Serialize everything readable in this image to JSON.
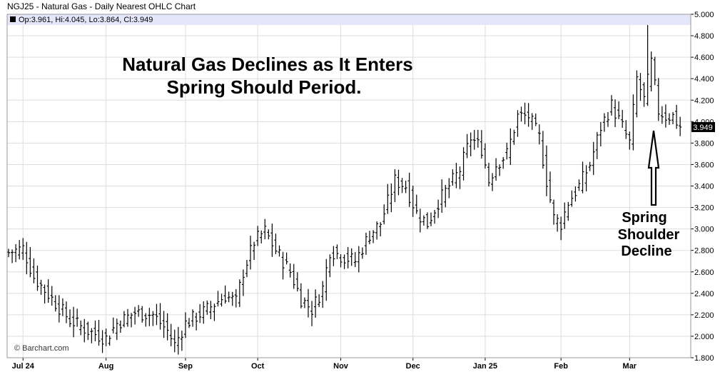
{
  "header": {
    "title": "NGJ25 - Natural Gas - Daily Nearest OHLC Chart",
    "ohlc_readout": "Op:3.961, Hi:4.045, Lo:3.864, Cl:3.949"
  },
  "annotations": {
    "main_title_line1": "Natural Gas Declines as It Enters",
    "main_title_line2": "Spring Should Period.",
    "side_line1": "Spring",
    "side_line2": "Shoulder",
    "side_line3": "Decline"
  },
  "credit": "© Barchart.com",
  "last_price_label": "3.949",
  "colors": {
    "background": "#ffffff",
    "header_band": "#e6e6fa",
    "grid": "#dddddd",
    "bars": "#000000",
    "last_price_box": "#000000"
  },
  "chart_data": {
    "type": "ohlc",
    "title": "NGJ25 - Natural Gas - Daily Nearest OHLC Chart",
    "xlabel": "",
    "ylabel": "",
    "ylim": [
      1.8,
      5.0
    ],
    "yticks": [
      "1.800",
      "2.000",
      "2.200",
      "2.400",
      "2.600",
      "2.800",
      "3.000",
      "3.200",
      "3.400",
      "3.600",
      "3.800",
      "4.000",
      "4.200",
      "4.400",
      "4.600",
      "4.800",
      "5.000"
    ],
    "grid": true,
    "month_labels": [
      {
        "label": "Jul 24",
        "bar_index": 4
      },
      {
        "label": "Aug",
        "bar_index": 27
      },
      {
        "label": "Sep",
        "bar_index": 49
      },
      {
        "label": "Oct",
        "bar_index": 69
      },
      {
        "label": "Nov",
        "bar_index": 92
      },
      {
        "label": "Dec",
        "bar_index": 112
      },
      {
        "label": "Jan 25",
        "bar_index": 132
      },
      {
        "label": "Feb",
        "bar_index": 153
      },
      {
        "label": "Mar",
        "bar_index": 172
      }
    ],
    "close_path": [
      [
        0,
        2.78
      ],
      [
        4,
        2.82
      ],
      [
        7,
        2.55
      ],
      [
        12,
        2.35
      ],
      [
        17,
        2.15
      ],
      [
        22,
        2.05
      ],
      [
        27,
        1.98
      ],
      [
        30,
        2.12
      ],
      [
        35,
        2.22
      ],
      [
        40,
        2.2
      ],
      [
        44,
        2.05
      ],
      [
        46,
        1.92
      ],
      [
        49,
        2.12
      ],
      [
        55,
        2.25
      ],
      [
        60,
        2.38
      ],
      [
        63,
        2.32
      ],
      [
        65,
        2.6
      ],
      [
        68,
        2.88
      ],
      [
        71,
        2.98
      ],
      [
        74,
        2.8
      ],
      [
        78,
        2.6
      ],
      [
        81,
        2.35
      ],
      [
        84,
        2.25
      ],
      [
        87,
        2.45
      ],
      [
        89,
        2.8
      ],
      [
        92,
        2.75
      ],
      [
        96,
        2.7
      ],
      [
        100,
        2.95
      ],
      [
        103,
        3.05
      ],
      [
        107,
        3.45
      ],
      [
        110,
        3.4
      ],
      [
        113,
        3.15
      ],
      [
        116,
        3.05
      ],
      [
        119,
        3.25
      ],
      [
        122,
        3.4
      ],
      [
        125,
        3.55
      ],
      [
        128,
        3.85
      ],
      [
        131,
        3.75
      ],
      [
        133,
        3.45
      ],
      [
        135,
        3.6
      ],
      [
        138,
        3.7
      ],
      [
        141,
        4.05
      ],
      [
        144,
        4.05
      ],
      [
        147,
        3.85
      ],
      [
        149,
        3.45
      ],
      [
        151,
        3.1
      ],
      [
        153,
        3.05
      ],
      [
        155,
        3.25
      ],
      [
        158,
        3.4
      ],
      [
        161,
        3.6
      ],
      [
        164,
        3.95
      ],
      [
        167,
        4.15
      ],
      [
        170,
        3.95
      ],
      [
        172,
        3.8
      ],
      [
        174,
        4.4
      ],
      [
        176,
        4.2
      ],
      [
        178,
        4.55
      ],
      [
        180,
        4.1
      ],
      [
        182,
        4.05
      ],
      [
        184,
        4.05
      ],
      [
        186,
        3.95
      ]
    ],
    "special_bars": [
      {
        "index": 177,
        "high": 4.9
      },
      {
        "index": 186,
        "open": 3.961,
        "high": 4.045,
        "low": 3.864,
        "close": 3.949
      }
    ],
    "last": 3.949
  }
}
